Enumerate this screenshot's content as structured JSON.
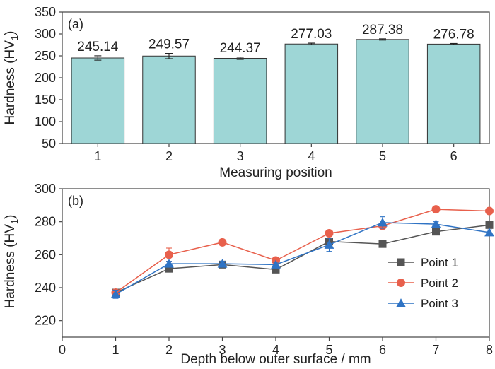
{
  "chart_data": [
    {
      "type": "bar",
      "panel_tag": "(a)",
      "xlabel": "Measuring position",
      "ylabel": "Hardness (HV",
      "ylabel_sub": "1",
      "ylabel_end": ")",
      "categories": [
        "1",
        "2",
        "3",
        "4",
        "5",
        "6"
      ],
      "values": [
        245.14,
        249.57,
        244.37,
        277.03,
        287.38,
        276.78
      ],
      "value_labels": [
        "245.14",
        "249.57",
        "244.37",
        "277.03",
        "287.38",
        "276.78"
      ],
      "errors": [
        5,
        6,
        2.5,
        2,
        1.5,
        1.5
      ],
      "ylim": [
        50,
        350
      ],
      "yticks": [
        "50",
        "100",
        "150",
        "200",
        "250",
        "300",
        "350"
      ],
      "bar_color": "#9ed6d6",
      "bar_edge_color": "#333333",
      "grid": false
    },
    {
      "type": "line",
      "panel_tag": "(b)",
      "xlabel": "Depth below outer surface / mm",
      "ylabel": "Hardness (HV",
      "ylabel_sub": "1",
      "ylabel_end": ")",
      "xlim": [
        0,
        8
      ],
      "ylim": [
        210,
        300
      ],
      "xticks": [
        "0",
        "1",
        "2",
        "3",
        "4",
        "5",
        "6",
        "7",
        "8"
      ],
      "yticks": [
        "220",
        "240",
        "260",
        "280",
        "300"
      ],
      "legend_position": "bottom-right",
      "grid": false,
      "x": [
        1,
        2,
        3,
        4,
        5,
        6,
        7,
        8
      ],
      "series": [
        {
          "name": "Point 1",
          "color": "#555555",
          "marker": "square",
          "values": [
            237,
            251.5,
            254,
            251,
            268,
            266.5,
            274,
            278
          ],
          "errors": [
            1.5,
            1.5,
            1.5,
            1.5,
            1.5,
            1.5,
            1.5,
            1.5
          ]
        },
        {
          "name": "Point 2",
          "color": "#e8604c",
          "marker": "circle",
          "values": [
            237,
            260,
            267.5,
            256.5,
            273,
            277.5,
            287.5,
            286.5
          ],
          "errors": [
            1.5,
            4,
            1.5,
            1.5,
            1.5,
            1.5,
            1.5,
            1
          ]
        },
        {
          "name": "Point 3",
          "color": "#2f73c4",
          "marker": "triangle",
          "values": [
            236,
            254.5,
            254.5,
            254,
            266,
            279.5,
            278.5,
            273.5
          ],
          "errors": [
            2.5,
            1.5,
            1.5,
            1.5,
            4,
            3.5,
            1.5,
            1.5
          ]
        }
      ]
    }
  ]
}
